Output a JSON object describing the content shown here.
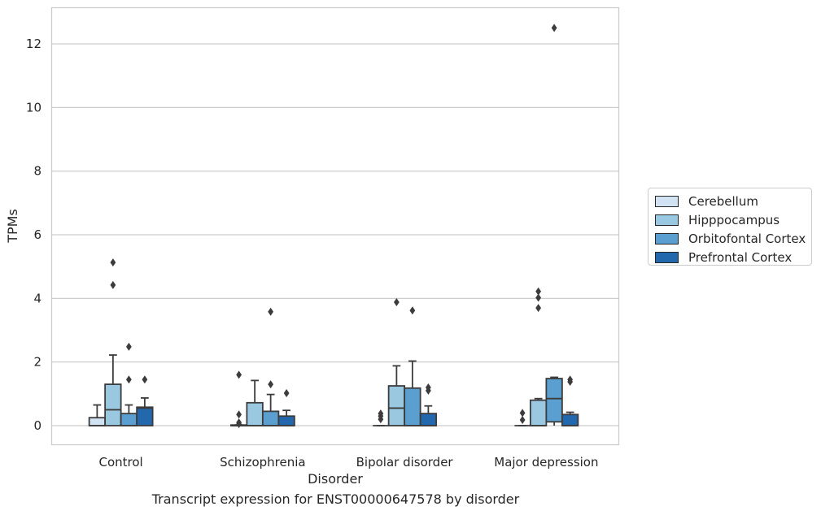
{
  "chart_data": {
    "type": "box",
    "caption": "Transcript expression for ENST00000647578 by disorder",
    "xlabel": "Disorder",
    "ylabel": "TPMs",
    "ylim": [
      -0.6,
      13.15
    ],
    "yticks": [
      0,
      2,
      4,
      6,
      8,
      10,
      12
    ],
    "categories": [
      "Control",
      "Schizophrenia",
      "Bipolar disorder",
      "Major depression"
    ],
    "grid": "horizontal",
    "legend_placement": "right",
    "series": [
      {
        "name": "Cerebellum",
        "color": "#d1e2f2",
        "boxes": [
          {
            "whislo": 0,
            "q1": 0,
            "med": 0,
            "q3": 0.25,
            "whishi": 0.65,
            "fliers": []
          },
          {
            "whislo": 0,
            "q1": 0,
            "med": 0,
            "q3": 0.02,
            "whishi": 0.02,
            "fliers": [
              0.05,
              0.1,
              0.35,
              1.6
            ]
          },
          {
            "whislo": 0,
            "q1": 0,
            "med": 0,
            "q3": 0,
            "whishi": 0,
            "fliers": [
              0.2,
              0.3,
              0.38
            ]
          },
          {
            "whislo": 0,
            "q1": 0,
            "med": 0,
            "q3": 0,
            "whishi": 0,
            "fliers": [
              0.18,
              0.4
            ]
          }
        ]
      },
      {
        "name": "Hipppocampus",
        "color": "#9ac8e0",
        "boxes": [
          {
            "whislo": 0,
            "q1": 0,
            "med": 0.5,
            "q3": 1.3,
            "whishi": 2.22,
            "fliers": [
              4.42,
              5.13
            ]
          },
          {
            "whislo": 0,
            "q1": 0,
            "med": 0,
            "q3": 0.72,
            "whishi": 1.42,
            "fliers": []
          },
          {
            "whislo": 0,
            "q1": 0,
            "med": 0.55,
            "q3": 1.25,
            "whishi": 1.88,
            "fliers": [
              3.88
            ]
          },
          {
            "whislo": 0,
            "q1": 0,
            "med": 0,
            "q3": 0.8,
            "whishi": 0.85,
            "fliers": [
              3.7,
              4.02,
              4.22
            ]
          }
        ]
      },
      {
        "name": "Orbitofontal Cortex",
        "color": "#5a9fcf",
        "boxes": [
          {
            "whislo": 0,
            "q1": 0,
            "med": 0,
            "q3": 0.38,
            "whishi": 0.65,
            "fliers": [
              1.45,
              2.48
            ]
          },
          {
            "whislo": 0,
            "q1": 0,
            "med": 0,
            "q3": 0.45,
            "whishi": 0.98,
            "fliers": [
              1.3,
              3.58
            ]
          },
          {
            "whislo": 0,
            "q1": 0,
            "med": 0,
            "q3": 1.18,
            "whishi": 2.03,
            "fliers": [
              3.62
            ]
          },
          {
            "whislo": 0,
            "q1": 0.12,
            "med": 0.85,
            "q3": 1.48,
            "whishi": 1.52,
            "fliers": [
              12.5
            ]
          }
        ]
      },
      {
        "name": "Prefrontal Cortex",
        "color": "#2367ac",
        "boxes": [
          {
            "whislo": 0,
            "q1": 0,
            "med": 0.55,
            "q3": 0.58,
            "whishi": 0.87,
            "fliers": [
              1.45
            ]
          },
          {
            "whislo": 0,
            "q1": 0,
            "med": 0,
            "q3": 0.3,
            "whishi": 0.48,
            "fliers": [
              1.02
            ]
          },
          {
            "whislo": 0,
            "q1": 0,
            "med": 0,
            "q3": 0.38,
            "whishi": 0.62,
            "fliers": [
              1.1,
              1.2
            ]
          },
          {
            "whislo": 0,
            "q1": 0,
            "med": 0,
            "q3": 0.35,
            "whishi": 0.42,
            "fliers": [
              1.38,
              1.45
            ]
          }
        ]
      }
    ]
  }
}
